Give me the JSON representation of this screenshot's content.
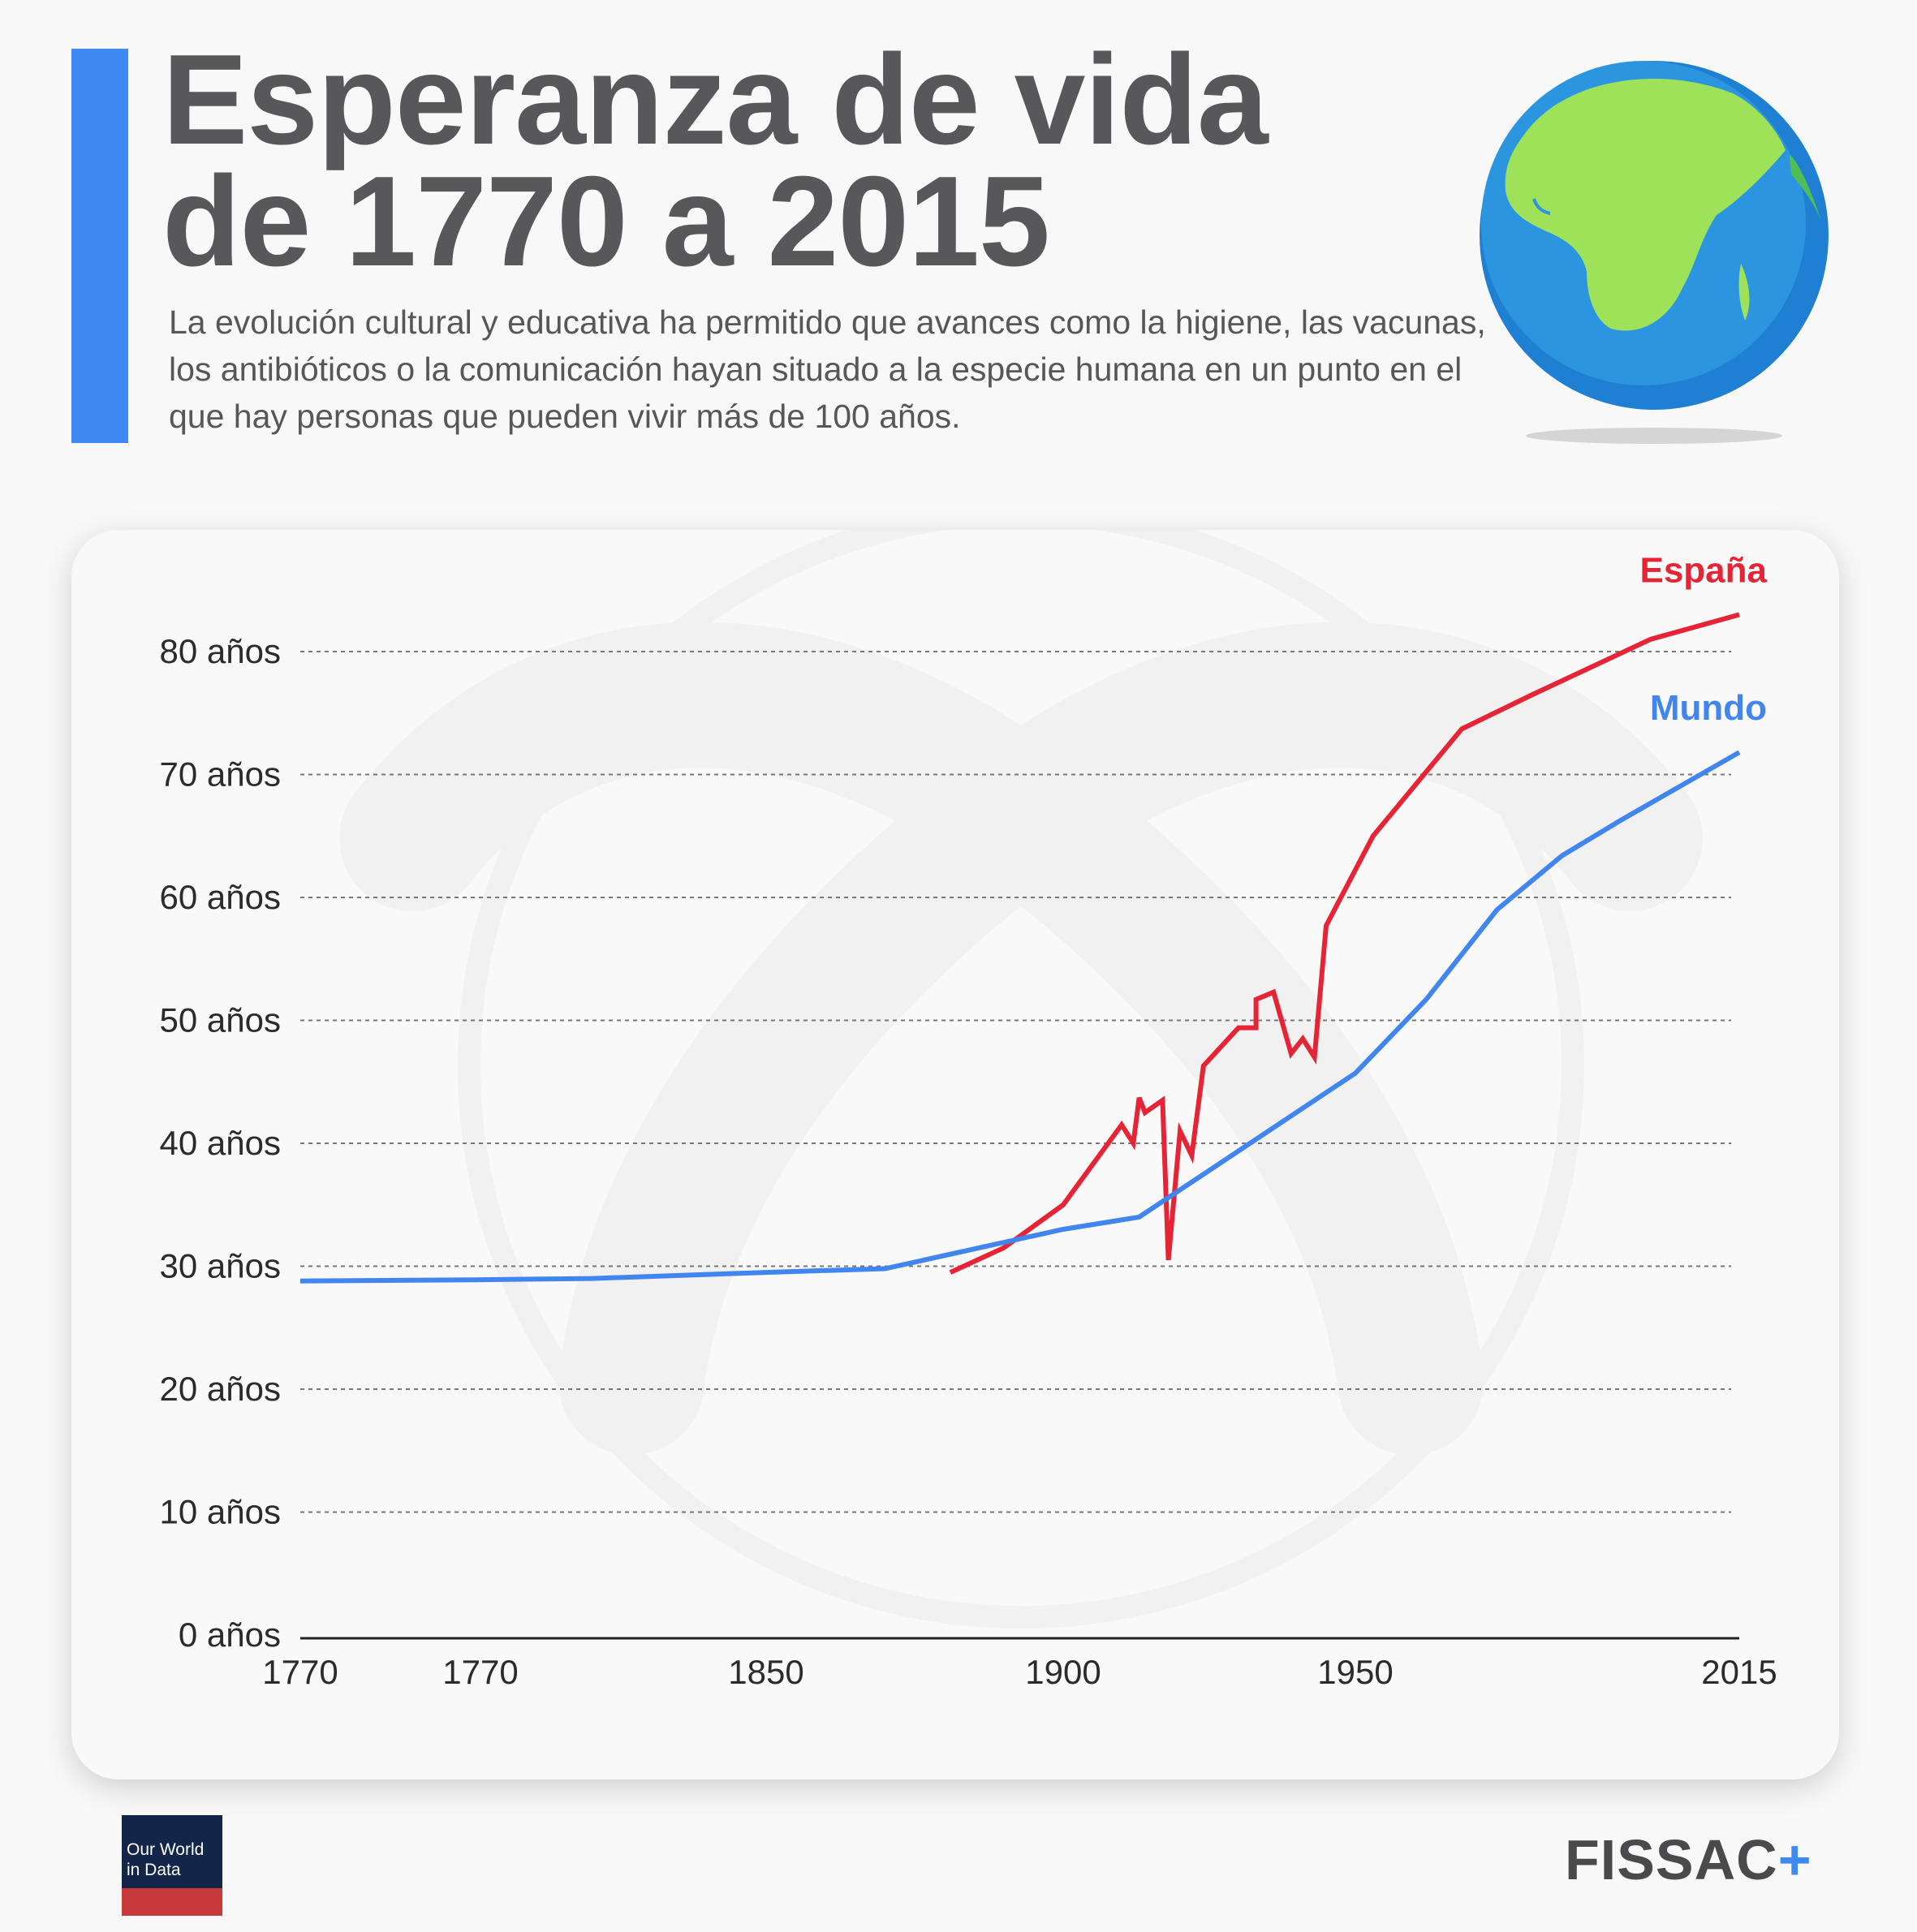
{
  "header": {
    "title_line1": "Esperanza de vida",
    "title_line2": "de 1770 a 2015",
    "subtitle": "La evolución cultural y educativa ha permitido que avances como la higiene, las vacunas, los antibióticos o la comunicación hayan situado a la especie humana en un punto en el que hay personas que pueden vivir más de 100 años."
  },
  "footer": {
    "source_logo_text": "Our World in Data",
    "brand_text": "FISSAC",
    "brand_plus": "+"
  },
  "colors": {
    "accent": "#3f8af2",
    "spain": "#e52536",
    "world": "#4186ef",
    "title": "#58585a",
    "grid": "#777777"
  },
  "icons": [
    "earth-globe-icon",
    "watermark-logo-icon"
  ],
  "chart_data": {
    "type": "line",
    "title": "",
    "xlabel": "",
    "ylabel": "",
    "y_ticks": [
      0,
      10,
      20,
      30,
      40,
      50,
      60,
      70,
      80
    ],
    "y_tick_labels": [
      "0 años",
      "10 años",
      "20 años",
      "30 años",
      "40 años",
      "50 años",
      "60 años",
      "70 años",
      "80 años"
    ],
    "ylim": [
      0,
      80
    ],
    "x_tick_labels": [
      "1770",
      "1770",
      "1850",
      "1900",
      "1950",
      "2015"
    ],
    "grid": "horizontal dashed",
    "legend": "labels at line ends, top-right",
    "series": [
      {
        "name": "España",
        "color": "#e52536",
        "points": [
          [
            1881,
            29.5
          ],
          [
            1890,
            31.5
          ],
          [
            1900,
            35
          ],
          [
            1910,
            41.5
          ],
          [
            1912,
            40
          ],
          [
            1913,
            43.7
          ],
          [
            1914,
            42.5
          ],
          [
            1917,
            43.5
          ],
          [
            1918,
            30.5
          ],
          [
            1920,
            41
          ],
          [
            1922,
            39
          ],
          [
            1924,
            46.3
          ],
          [
            1930,
            49.4
          ],
          [
            1933,
            49.4
          ],
          [
            1933,
            51.7
          ],
          [
            1936,
            52.3
          ],
          [
            1939,
            47.3
          ],
          [
            1941,
            48.5
          ],
          [
            1943,
            47
          ],
          [
            1945,
            57.7
          ],
          [
            1953,
            65
          ],
          [
            1968,
            73.7
          ],
          [
            1980,
            76.5
          ],
          [
            2000,
            81
          ],
          [
            2015,
            83
          ]
        ]
      },
      {
        "name": "Mundo",
        "color": "#4186ef",
        "points": [
          [
            1770,
            28.8
          ],
          [
            1800,
            28.9
          ],
          [
            1820,
            29.0
          ],
          [
            1850,
            29.5
          ],
          [
            1870,
            29.8
          ],
          [
            1900,
            33
          ],
          [
            1913,
            34
          ],
          [
            1950,
            45.7
          ],
          [
            1962,
            51.7
          ],
          [
            1974,
            59
          ],
          [
            1985,
            63.4
          ],
          [
            1995,
            66.3
          ],
          [
            2015,
            71.8
          ]
        ]
      }
    ]
  }
}
